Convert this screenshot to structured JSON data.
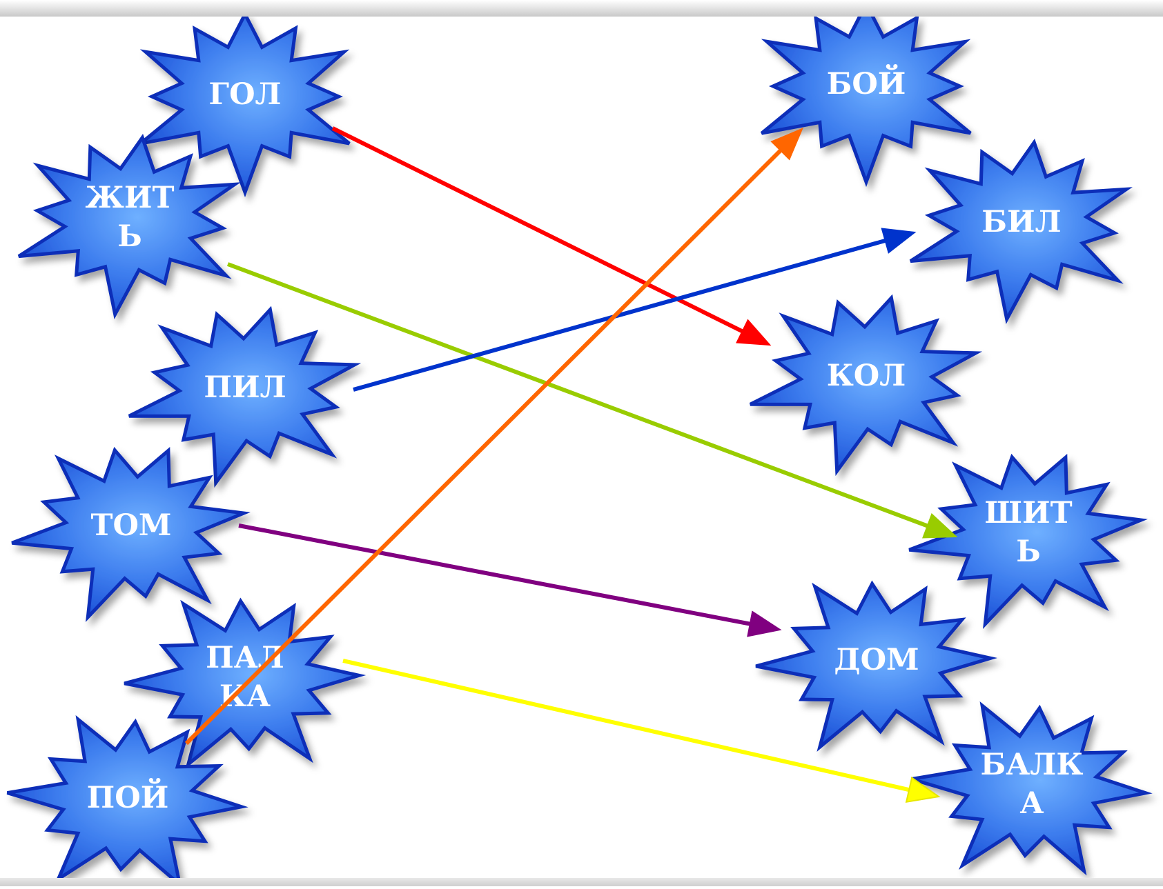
{
  "diagram": {
    "left_words": [
      {
        "id": "gol",
        "lines": [
          "ГОЛ"
        ]
      },
      {
        "id": "zhit",
        "lines": [
          "ЖИТ",
          "Ь"
        ]
      },
      {
        "id": "pil",
        "lines": [
          "ПИЛ"
        ]
      },
      {
        "id": "tom",
        "lines": [
          "ТОМ"
        ]
      },
      {
        "id": "palka",
        "lines": [
          "ПАЛ",
          "КА"
        ]
      },
      {
        "id": "poy",
        "lines": [
          "ПОЙ"
        ]
      }
    ],
    "right_words": [
      {
        "id": "boy",
        "lines": [
          "БОЙ"
        ]
      },
      {
        "id": "bil",
        "lines": [
          "БИЛ"
        ]
      },
      {
        "id": "kol",
        "lines": [
          "КОЛ"
        ]
      },
      {
        "id": "shit",
        "lines": [
          "ШИТ",
          "Ь"
        ]
      },
      {
        "id": "dom",
        "lines": [
          "ДОМ"
        ]
      },
      {
        "id": "balka",
        "lines": [
          "БАЛК",
          "А"
        ]
      }
    ],
    "connections": [
      {
        "from": "ГОЛ",
        "to": "КОЛ",
        "color": "#ff0000"
      },
      {
        "from": "ЖИТЬ",
        "to": "ШИТЬ",
        "color": "#99cc00"
      },
      {
        "from": "ПИЛ",
        "to": "БИЛ",
        "color": "#0033cc"
      },
      {
        "from": "ТОМ",
        "to": "ДОМ",
        "color": "#800080"
      },
      {
        "from": "ПАЛКА",
        "to": "БАЛКА",
        "color": "#ffff00"
      },
      {
        "from": "ПОЙ",
        "to": "БОЙ",
        "color": "#ff6600"
      }
    ],
    "colors": {
      "star_fill_light": "#5b9bff",
      "star_fill_dark": "#1a4fd6",
      "star_outline": "#0a2fb8",
      "label": "#ffffff"
    }
  }
}
